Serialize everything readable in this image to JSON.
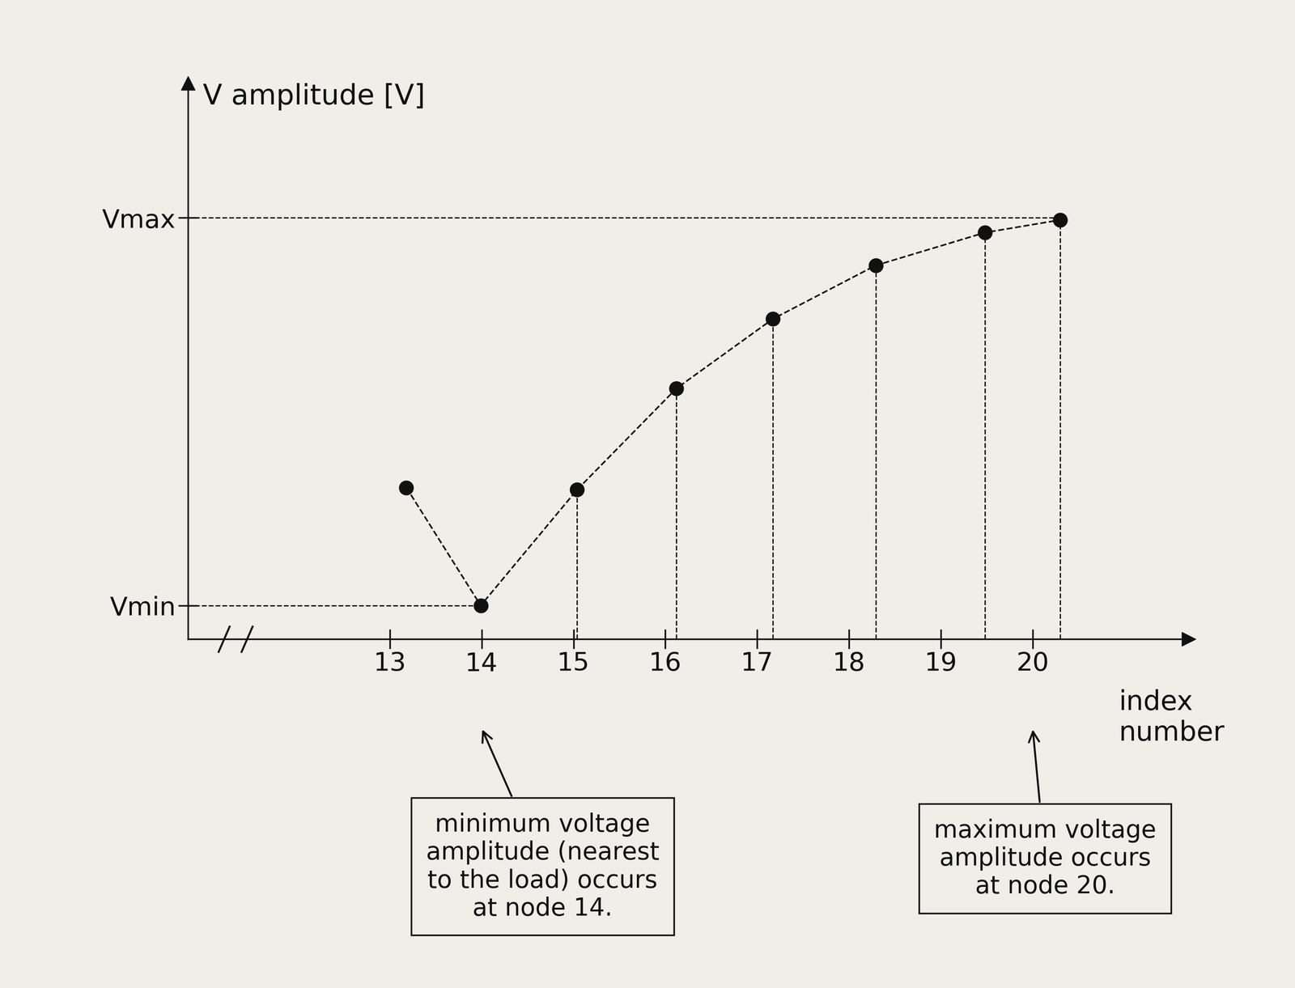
{
  "chart_data": {
    "type": "line",
    "x": [
      13.18,
      13.99,
      15.04,
      16.12,
      17.17,
      18.29,
      19.48,
      20.3
    ],
    "values": [
      0.36,
      0.08,
      0.355,
      0.595,
      0.76,
      0.887,
      0.965,
      0.995
    ],
    "xlim": [
      10.8,
      21.7
    ],
    "ylim": [
      0,
      1.32
    ],
    "xticks": [
      13,
      14,
      15,
      16,
      17,
      18,
      19,
      20
    ],
    "yticks": [
      {
        "value": 0.08,
        "label": "Vmin"
      },
      {
        "value": 1.0,
        "label": "Vmax"
      }
    ],
    "y_label": "V amplitude [V]",
    "x_label": "index\nnumber",
    "annotations": [
      {
        "text": "minimum voltage\namplitude (nearest\nto the load) occurs\nat node 14.",
        "x": 14
      },
      {
        "text": "maximum voltage\namplitude occurs\nat node 20.",
        "x": 20
      }
    ],
    "color": "#111111",
    "marker": "o",
    "line_style": "dashed",
    "grid": false
  }
}
